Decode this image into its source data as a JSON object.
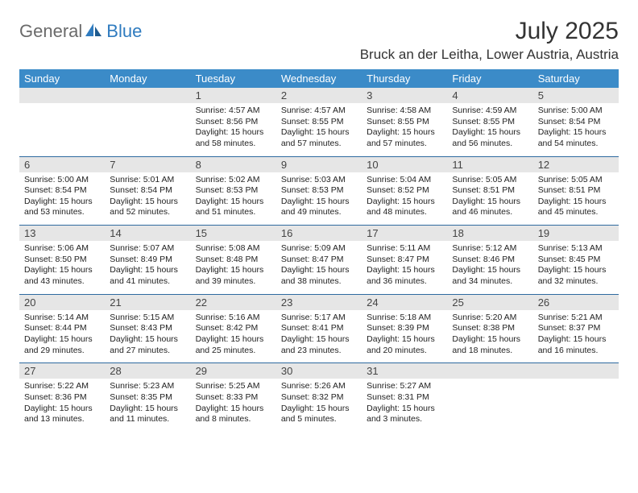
{
  "logo": {
    "text1": "General",
    "text2": "Blue",
    "icon_color": "#2f7bbf",
    "text1_color": "#6a6a6a",
    "text2_color": "#2f7bbf"
  },
  "title": "July 2025",
  "location": "Bruck an der Leitha, Lower Austria, Austria",
  "colors": {
    "header_bg": "#3b8bc8",
    "header_text": "#ffffff",
    "week_border": "#2f6aa0",
    "daynum_bg": "#e6e6e6",
    "body_text": "#222222"
  },
  "typography": {
    "month_title_size": 30,
    "location_size": 17,
    "dow_size": 13,
    "daynum_size": 13,
    "body_size": 10.5
  },
  "layout": {
    "columns": 7,
    "rows": 5
  },
  "dow": [
    "Sunday",
    "Monday",
    "Tuesday",
    "Wednesday",
    "Thursday",
    "Friday",
    "Saturday"
  ],
  "weeks": [
    [
      {
        "num": "",
        "sunrise": "",
        "sunset": "",
        "daylight": ""
      },
      {
        "num": "",
        "sunrise": "",
        "sunset": "",
        "daylight": ""
      },
      {
        "num": "1",
        "sunrise": "Sunrise: 4:57 AM",
        "sunset": "Sunset: 8:56 PM",
        "daylight": "Daylight: 15 hours and 58 minutes."
      },
      {
        "num": "2",
        "sunrise": "Sunrise: 4:57 AM",
        "sunset": "Sunset: 8:55 PM",
        "daylight": "Daylight: 15 hours and 57 minutes."
      },
      {
        "num": "3",
        "sunrise": "Sunrise: 4:58 AM",
        "sunset": "Sunset: 8:55 PM",
        "daylight": "Daylight: 15 hours and 57 minutes."
      },
      {
        "num": "4",
        "sunrise": "Sunrise: 4:59 AM",
        "sunset": "Sunset: 8:55 PM",
        "daylight": "Daylight: 15 hours and 56 minutes."
      },
      {
        "num": "5",
        "sunrise": "Sunrise: 5:00 AM",
        "sunset": "Sunset: 8:54 PM",
        "daylight": "Daylight: 15 hours and 54 minutes."
      }
    ],
    [
      {
        "num": "6",
        "sunrise": "Sunrise: 5:00 AM",
        "sunset": "Sunset: 8:54 PM",
        "daylight": "Daylight: 15 hours and 53 minutes."
      },
      {
        "num": "7",
        "sunrise": "Sunrise: 5:01 AM",
        "sunset": "Sunset: 8:54 PM",
        "daylight": "Daylight: 15 hours and 52 minutes."
      },
      {
        "num": "8",
        "sunrise": "Sunrise: 5:02 AM",
        "sunset": "Sunset: 8:53 PM",
        "daylight": "Daylight: 15 hours and 51 minutes."
      },
      {
        "num": "9",
        "sunrise": "Sunrise: 5:03 AM",
        "sunset": "Sunset: 8:53 PM",
        "daylight": "Daylight: 15 hours and 49 minutes."
      },
      {
        "num": "10",
        "sunrise": "Sunrise: 5:04 AM",
        "sunset": "Sunset: 8:52 PM",
        "daylight": "Daylight: 15 hours and 48 minutes."
      },
      {
        "num": "11",
        "sunrise": "Sunrise: 5:05 AM",
        "sunset": "Sunset: 8:51 PM",
        "daylight": "Daylight: 15 hours and 46 minutes."
      },
      {
        "num": "12",
        "sunrise": "Sunrise: 5:05 AM",
        "sunset": "Sunset: 8:51 PM",
        "daylight": "Daylight: 15 hours and 45 minutes."
      }
    ],
    [
      {
        "num": "13",
        "sunrise": "Sunrise: 5:06 AM",
        "sunset": "Sunset: 8:50 PM",
        "daylight": "Daylight: 15 hours and 43 minutes."
      },
      {
        "num": "14",
        "sunrise": "Sunrise: 5:07 AM",
        "sunset": "Sunset: 8:49 PM",
        "daylight": "Daylight: 15 hours and 41 minutes."
      },
      {
        "num": "15",
        "sunrise": "Sunrise: 5:08 AM",
        "sunset": "Sunset: 8:48 PM",
        "daylight": "Daylight: 15 hours and 39 minutes."
      },
      {
        "num": "16",
        "sunrise": "Sunrise: 5:09 AM",
        "sunset": "Sunset: 8:47 PM",
        "daylight": "Daylight: 15 hours and 38 minutes."
      },
      {
        "num": "17",
        "sunrise": "Sunrise: 5:11 AM",
        "sunset": "Sunset: 8:47 PM",
        "daylight": "Daylight: 15 hours and 36 minutes."
      },
      {
        "num": "18",
        "sunrise": "Sunrise: 5:12 AM",
        "sunset": "Sunset: 8:46 PM",
        "daylight": "Daylight: 15 hours and 34 minutes."
      },
      {
        "num": "19",
        "sunrise": "Sunrise: 5:13 AM",
        "sunset": "Sunset: 8:45 PM",
        "daylight": "Daylight: 15 hours and 32 minutes."
      }
    ],
    [
      {
        "num": "20",
        "sunrise": "Sunrise: 5:14 AM",
        "sunset": "Sunset: 8:44 PM",
        "daylight": "Daylight: 15 hours and 29 minutes."
      },
      {
        "num": "21",
        "sunrise": "Sunrise: 5:15 AM",
        "sunset": "Sunset: 8:43 PM",
        "daylight": "Daylight: 15 hours and 27 minutes."
      },
      {
        "num": "22",
        "sunrise": "Sunrise: 5:16 AM",
        "sunset": "Sunset: 8:42 PM",
        "daylight": "Daylight: 15 hours and 25 minutes."
      },
      {
        "num": "23",
        "sunrise": "Sunrise: 5:17 AM",
        "sunset": "Sunset: 8:41 PM",
        "daylight": "Daylight: 15 hours and 23 minutes."
      },
      {
        "num": "24",
        "sunrise": "Sunrise: 5:18 AM",
        "sunset": "Sunset: 8:39 PM",
        "daylight": "Daylight: 15 hours and 20 minutes."
      },
      {
        "num": "25",
        "sunrise": "Sunrise: 5:20 AM",
        "sunset": "Sunset: 8:38 PM",
        "daylight": "Daylight: 15 hours and 18 minutes."
      },
      {
        "num": "26",
        "sunrise": "Sunrise: 5:21 AM",
        "sunset": "Sunset: 8:37 PM",
        "daylight": "Daylight: 15 hours and 16 minutes."
      }
    ],
    [
      {
        "num": "27",
        "sunrise": "Sunrise: 5:22 AM",
        "sunset": "Sunset: 8:36 PM",
        "daylight": "Daylight: 15 hours and 13 minutes."
      },
      {
        "num": "28",
        "sunrise": "Sunrise: 5:23 AM",
        "sunset": "Sunset: 8:35 PM",
        "daylight": "Daylight: 15 hours and 11 minutes."
      },
      {
        "num": "29",
        "sunrise": "Sunrise: 5:25 AM",
        "sunset": "Sunset: 8:33 PM",
        "daylight": "Daylight: 15 hours and 8 minutes."
      },
      {
        "num": "30",
        "sunrise": "Sunrise: 5:26 AM",
        "sunset": "Sunset: 8:32 PM",
        "daylight": "Daylight: 15 hours and 5 minutes."
      },
      {
        "num": "31",
        "sunrise": "Sunrise: 5:27 AM",
        "sunset": "Sunset: 8:31 PM",
        "daylight": "Daylight: 15 hours and 3 minutes."
      },
      {
        "num": "",
        "sunrise": "",
        "sunset": "",
        "daylight": ""
      },
      {
        "num": "",
        "sunrise": "",
        "sunset": "",
        "daylight": ""
      }
    ]
  ]
}
